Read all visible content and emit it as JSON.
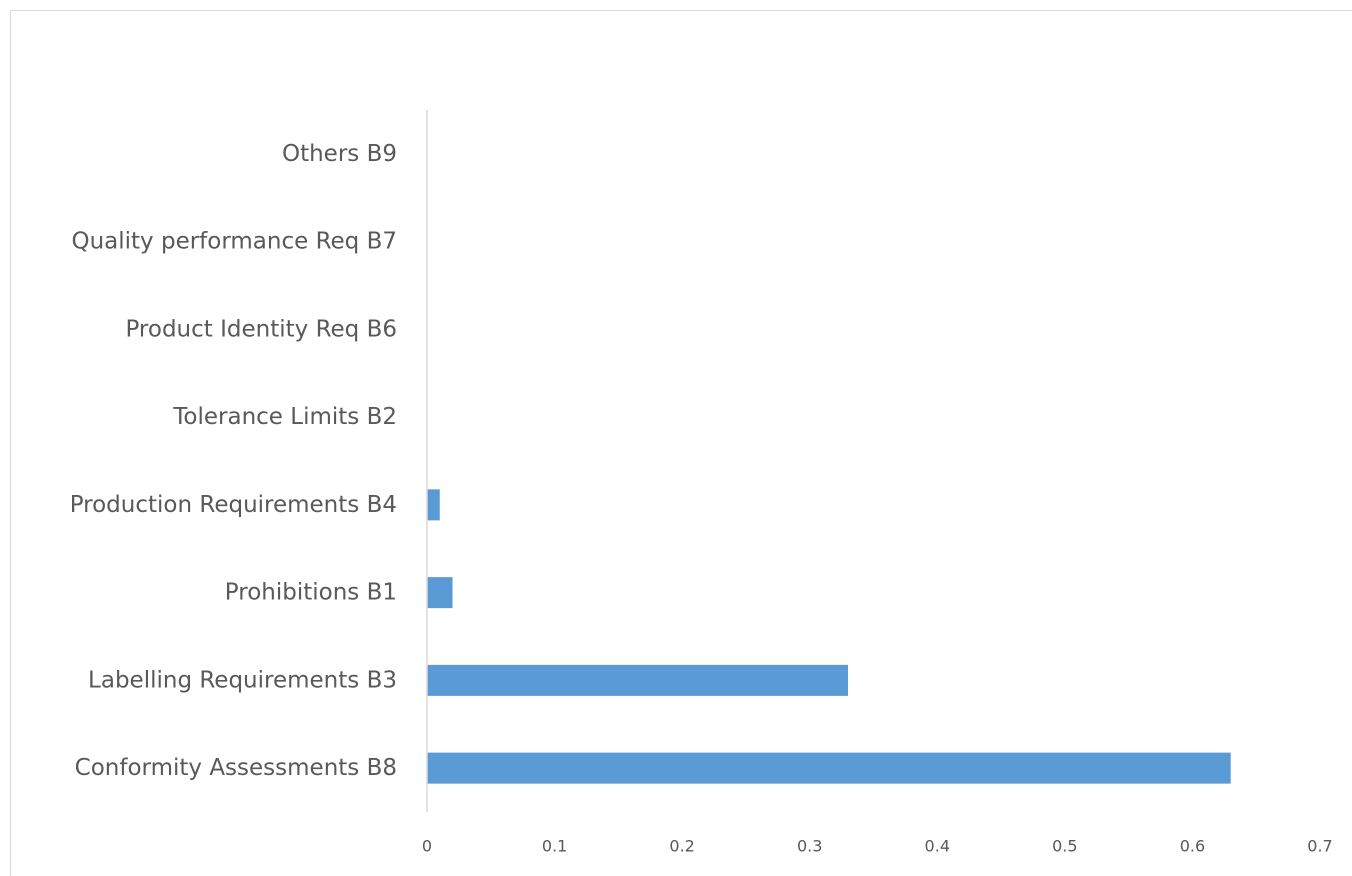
{
  "chart_data": {
    "type": "bar",
    "orientation": "horizontal",
    "title": "",
    "xlabel": "",
    "ylabel": "",
    "categories": [
      "Conformity Assessments B8",
      "Labelling Requirements B3",
      "Prohibitions B1",
      "Production Requirements B4",
      "Tolerance Limits B2",
      "Product Identity Req B6",
      "Quality performance Req B7",
      "Others B9"
    ],
    "values": [
      0.63,
      0.33,
      0.02,
      0.01,
      0,
      0,
      0,
      0
    ],
    "xlim": [
      0,
      0.7
    ],
    "xticks": [
      "0",
      "0.1",
      "0.2",
      "0.3",
      "0.4",
      "0.5",
      "0.6",
      "0.7"
    ],
    "grid": false,
    "legend": "none",
    "bar_color": "#5b9bd5",
    "axis_color": "#d9d9d9",
    "label_color": "#595959"
  }
}
